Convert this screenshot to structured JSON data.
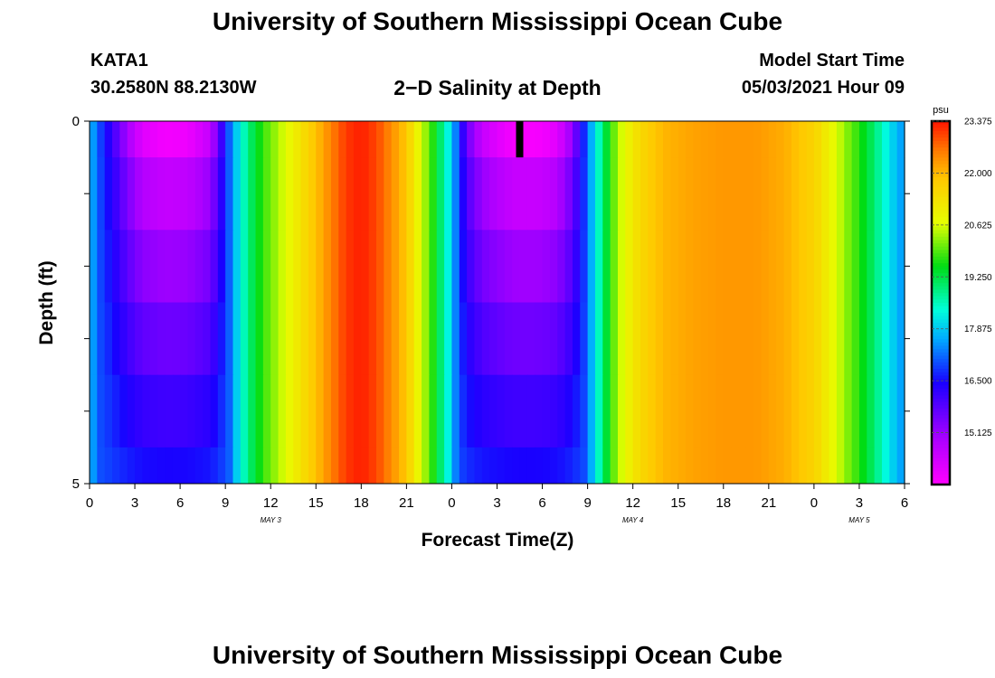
{
  "header": {
    "title": "University of Southern Mississippi Ocean Cube",
    "station": "KATA1",
    "coords": "30.2580N  88.2130W",
    "plot_title": "2−D Salinity at Depth",
    "model_label": "Model Start Time",
    "model_time": "05/03/2021 Hour 09"
  },
  "footer": {
    "title": "University of Southern Mississippi Ocean Cube"
  },
  "chart_data": {
    "type": "heatmap",
    "title": "2−D Salinity at Depth",
    "xlabel": "Forecast Time(Z)",
    "ylabel": "Depth (ft)",
    "x_tick_labels": [
      "0",
      "3",
      "6",
      "9",
      "12",
      "15",
      "18",
      "21",
      "0",
      "3",
      "6",
      "9",
      "12",
      "15",
      "18",
      "21",
      "0",
      "3",
      "6"
    ],
    "date_labels": [
      {
        "label": "MAY 3",
        "hour": 12
      },
      {
        "label": "MAY 4",
        "hour": 36
      },
      {
        "label": "MAY 5",
        "hour": 51
      }
    ],
    "xlim_hours": [
      0,
      54
    ],
    "y_tick_labels": [
      "0",
      "5"
    ],
    "ylim": [
      0,
      5
    ],
    "depth_levels": [
      0,
      0.5,
      1.5,
      2.5,
      3.5,
      4.5,
      5
    ],
    "current_hour": 28.5,
    "colorbar": {
      "unit": "psu",
      "min": 13.75,
      "max": 23.375,
      "tick_labels": [
        "23.375",
        "22.000",
        "20.625",
        "19.250",
        "17.875",
        "16.500",
        "15.125"
      ]
    },
    "layer_offsets_psu": [
      0,
      0.7,
      1.2,
      1.7,
      2.2,
      2.6
    ],
    "surface_salinity": [
      [
        0,
        17.9
      ],
      [
        0.3,
        17.4
      ],
      [
        0.8,
        16.8
      ],
      [
        1.5,
        16.1
      ],
      [
        2.5,
        15.0
      ],
      [
        3.5,
        14.2
      ],
      [
        5,
        13.9
      ],
      [
        6.5,
        14.0
      ],
      [
        8,
        14.6
      ],
      [
        9,
        16.6
      ],
      [
        9.5,
        17.6
      ],
      [
        10.5,
        18.9
      ],
      [
        11.5,
        19.8
      ],
      [
        13,
        20.7
      ],
      [
        14.5,
        21.6
      ],
      [
        16,
        22.5
      ],
      [
        17,
        23.1
      ],
      [
        18,
        23.3
      ],
      [
        19,
        23.0
      ],
      [
        20,
        22.4
      ],
      [
        21,
        21.8
      ],
      [
        22,
        20.6
      ],
      [
        23,
        19.4
      ],
      [
        24,
        17.9
      ],
      [
        25,
        15.6
      ],
      [
        26,
        14.6
      ],
      [
        27,
        14.2
      ],
      [
        28,
        13.9
      ],
      [
        29,
        13.85
      ],
      [
        30,
        13.9
      ],
      [
        31,
        14.2
      ],
      [
        32,
        15.2
      ],
      [
        33,
        17.2
      ],
      [
        34,
        19.0
      ],
      [
        35,
        20.4
      ],
      [
        36,
        21.2
      ],
      [
        37,
        21.7
      ],
      [
        38,
        22.0
      ],
      [
        40,
        22.2
      ],
      [
        42,
        22.3
      ],
      [
        44,
        22.3
      ],
      [
        46,
        22.1
      ],
      [
        48,
        21.6
      ],
      [
        49,
        21.0
      ],
      [
        50,
        20.3
      ],
      [
        51,
        19.7
      ],
      [
        52,
        19.0
      ],
      [
        53,
        18.1
      ],
      [
        54,
        17.4
      ]
    ]
  }
}
